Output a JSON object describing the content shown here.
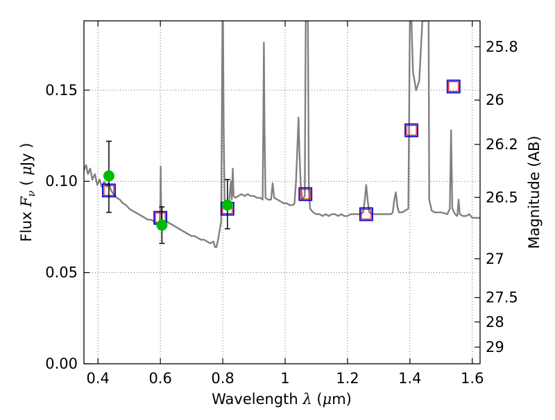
{
  "chart_data": {
    "type": "scatter",
    "xlabel": {
      "prefix": "Wavelength  ",
      "symbol": "λ",
      "mid": " (",
      "mu": "μ",
      "suffix": "m)"
    },
    "ylabel": {
      "prefix": "Flux  ",
      "symbol": "F",
      "sub": "ν",
      "mid": "  ( ",
      "mu": "μ",
      "suffix": "Jy )"
    },
    "y2label": "Magnitude (AB)",
    "xlim": [
      0.355,
      1.625
    ],
    "ylim": [
      0.0,
      0.188
    ],
    "grid": true,
    "x_ticks": [
      {
        "value": 0.4,
        "label": "0.4"
      },
      {
        "value": 0.6,
        "label": "0.6"
      },
      {
        "value": 0.8,
        "label": "0.8"
      },
      {
        "value": 1.0,
        "label": "1"
      },
      {
        "value": 1.2,
        "label": "1.2"
      },
      {
        "value": 1.4,
        "label": "1.4"
      },
      {
        "value": 1.6,
        "label": "1.6"
      }
    ],
    "y_ticks": [
      {
        "value": 0.0,
        "label": "0.00"
      },
      {
        "value": 0.05,
        "label": "0.05"
      },
      {
        "value": 0.1,
        "label": "0.10"
      },
      {
        "value": 0.15,
        "label": "0.15"
      }
    ],
    "y2_ticks": [
      {
        "value": 25.8,
        "label": "25.8"
      },
      {
        "value": 26.0,
        "label": "26"
      },
      {
        "value": 26.2,
        "label": "26.2"
      },
      {
        "value": 26.5,
        "label": "26.5"
      },
      {
        "value": 27.0,
        "label": "27"
      },
      {
        "value": 27.5,
        "label": "27.5"
      },
      {
        "value": 28.0,
        "label": "28"
      },
      {
        "value": 29.0,
        "label": "29"
      }
    ],
    "colors": {
      "spectrum": "#808080",
      "observed": "#00bb00",
      "model_box": "#0000cc",
      "model_inner": "#dd0000",
      "error_bar": "#000000",
      "grid": "#666666"
    },
    "series": [
      {
        "style": "line",
        "points": [
          [
            0.355,
            0.106
          ],
          [
            0.362,
            0.109
          ],
          [
            0.368,
            0.104
          ],
          [
            0.375,
            0.107
          ],
          [
            0.382,
            0.101
          ],
          [
            0.39,
            0.104
          ],
          [
            0.398,
            0.098
          ],
          [
            0.405,
            0.101
          ],
          [
            0.412,
            0.097
          ],
          [
            0.42,
            0.1
          ],
          [
            0.428,
            0.097
          ],
          [
            0.435,
            0.099
          ],
          [
            0.442,
            0.095
          ],
          [
            0.45,
            0.093
          ],
          [
            0.46,
            0.091
          ],
          [
            0.47,
            0.09
          ],
          [
            0.48,
            0.088
          ],
          [
            0.49,
            0.087
          ],
          [
            0.5,
            0.085
          ],
          [
            0.51,
            0.084
          ],
          [
            0.52,
            0.083
          ],
          [
            0.53,
            0.082
          ],
          [
            0.54,
            0.081
          ],
          [
            0.55,
            0.08
          ],
          [
            0.56,
            0.079
          ],
          [
            0.57,
            0.079
          ],
          [
            0.58,
            0.078
          ],
          [
            0.59,
            0.077
          ],
          [
            0.598,
            0.078
          ],
          [
            0.6,
            0.09
          ],
          [
            0.601,
            0.108
          ],
          [
            0.602,
            0.09
          ],
          [
            0.604,
            0.079
          ],
          [
            0.61,
            0.078
          ],
          [
            0.62,
            0.078
          ],
          [
            0.63,
            0.077
          ],
          [
            0.64,
            0.076
          ],
          [
            0.65,
            0.075
          ],
          [
            0.66,
            0.074
          ],
          [
            0.67,
            0.073
          ],
          [
            0.68,
            0.072
          ],
          [
            0.69,
            0.071
          ],
          [
            0.7,
            0.07
          ],
          [
            0.71,
            0.07
          ],
          [
            0.72,
            0.069
          ],
          [
            0.73,
            0.068
          ],
          [
            0.74,
            0.068
          ],
          [
            0.75,
            0.067
          ],
          [
            0.76,
            0.066
          ],
          [
            0.77,
            0.067
          ],
          [
            0.775,
            0.064
          ],
          [
            0.78,
            0.064
          ],
          [
            0.785,
            0.068
          ],
          [
            0.79,
            0.073
          ],
          [
            0.795,
            0.078
          ],
          [
            0.797,
            0.13
          ],
          [
            0.799,
            0.188
          ],
          [
            0.801,
            0.188
          ],
          [
            0.803,
            0.13
          ],
          [
            0.806,
            0.09
          ],
          [
            0.81,
            0.087
          ],
          [
            0.815,
            0.088
          ],
          [
            0.82,
            0.089
          ],
          [
            0.826,
            0.1
          ],
          [
            0.829,
            0.09
          ],
          [
            0.832,
            0.107
          ],
          [
            0.835,
            0.092
          ],
          [
            0.84,
            0.091
          ],
          [
            0.85,
            0.092
          ],
          [
            0.86,
            0.093
          ],
          [
            0.87,
            0.092
          ],
          [
            0.88,
            0.093
          ],
          [
            0.89,
            0.092
          ],
          [
            0.9,
            0.092
          ],
          [
            0.91,
            0.091
          ],
          [
            0.92,
            0.091
          ],
          [
            0.928,
            0.09
          ],
          [
            0.93,
            0.13
          ],
          [
            0.932,
            0.176
          ],
          [
            0.934,
            0.13
          ],
          [
            0.937,
            0.091
          ],
          [
            0.945,
            0.09
          ],
          [
            0.955,
            0.09
          ],
          [
            0.96,
            0.099
          ],
          [
            0.965,
            0.091
          ],
          [
            0.975,
            0.09
          ],
          [
            0.985,
            0.089
          ],
          [
            0.995,
            0.088
          ],
          [
            1.005,
            0.088
          ],
          [
            1.015,
            0.087
          ],
          [
            1.025,
            0.087
          ],
          [
            1.03,
            0.088
          ],
          [
            1.035,
            0.1
          ],
          [
            1.04,
            0.122
          ],
          [
            1.043,
            0.135
          ],
          [
            1.046,
            0.115
          ],
          [
            1.05,
            0.098
          ],
          [
            1.055,
            0.09
          ],
          [
            1.063,
            0.092
          ],
          [
            1.066,
            0.188
          ],
          [
            1.073,
            0.188
          ],
          [
            1.076,
            0.095
          ],
          [
            1.08,
            0.085
          ],
          [
            1.09,
            0.083
          ],
          [
            1.1,
            0.082
          ],
          [
            1.11,
            0.082
          ],
          [
            1.12,
            0.081
          ],
          [
            1.13,
            0.082
          ],
          [
            1.14,
            0.081
          ],
          [
            1.15,
            0.082
          ],
          [
            1.16,
            0.082
          ],
          [
            1.17,
            0.081
          ],
          [
            1.18,
            0.082
          ],
          [
            1.19,
            0.081
          ],
          [
            1.2,
            0.081
          ],
          [
            1.21,
            0.082
          ],
          [
            1.22,
            0.082
          ],
          [
            1.23,
            0.082
          ],
          [
            1.24,
            0.082
          ],
          [
            1.25,
            0.083
          ],
          [
            1.255,
            0.089
          ],
          [
            1.26,
            0.098
          ],
          [
            1.265,
            0.089
          ],
          [
            1.27,
            0.083
          ],
          [
            1.28,
            0.082
          ],
          [
            1.29,
            0.082
          ],
          [
            1.3,
            0.082
          ],
          [
            1.31,
            0.082
          ],
          [
            1.32,
            0.082
          ],
          [
            1.33,
            0.082
          ],
          [
            1.34,
            0.082
          ],
          [
            1.345,
            0.083
          ],
          [
            1.35,
            0.09
          ],
          [
            1.355,
            0.094
          ],
          [
            1.36,
            0.086
          ],
          [
            1.365,
            0.083
          ],
          [
            1.375,
            0.083
          ],
          [
            1.385,
            0.084
          ],
          [
            1.395,
            0.085
          ],
          [
            1.4,
            0.188
          ],
          [
            1.405,
            0.188
          ],
          [
            1.41,
            0.16
          ],
          [
            1.42,
            0.15
          ],
          [
            1.43,
            0.155
          ],
          [
            1.44,
            0.188
          ],
          [
            1.46,
            0.188
          ],
          [
            1.462,
            0.09
          ],
          [
            1.47,
            0.084
          ],
          [
            1.48,
            0.083
          ],
          [
            1.5,
            0.083
          ],
          [
            1.52,
            0.082
          ],
          [
            1.528,
            0.085
          ],
          [
            1.532,
            0.128
          ],
          [
            1.536,
            0.085
          ],
          [
            1.545,
            0.082
          ],
          [
            1.552,
            0.081
          ],
          [
            1.556,
            0.09
          ],
          [
            1.56,
            0.082
          ],
          [
            1.57,
            0.081
          ],
          [
            1.58,
            0.081
          ],
          [
            1.59,
            0.082
          ],
          [
            1.6,
            0.08
          ],
          [
            1.61,
            0.08
          ],
          [
            1.625,
            0.08
          ]
        ]
      },
      {
        "style": "square",
        "points": [
          [
            0.435,
            0.095
          ],
          [
            0.6,
            0.08
          ],
          [
            0.815,
            0.085
          ],
          [
            1.065,
            0.093
          ],
          [
            1.26,
            0.082
          ],
          [
            1.405,
            0.128
          ],
          [
            1.54,
            0.152
          ]
        ]
      },
      {
        "style": "circle",
        "points": [
          [
            0.435,
            0.103
          ],
          [
            0.605,
            0.076
          ],
          [
            0.815,
            0.087
          ]
        ],
        "errors": [
          [
            0.083,
            0.122
          ],
          [
            0.066,
            0.086
          ],
          [
            0.074,
            0.101
          ]
        ]
      }
    ]
  }
}
